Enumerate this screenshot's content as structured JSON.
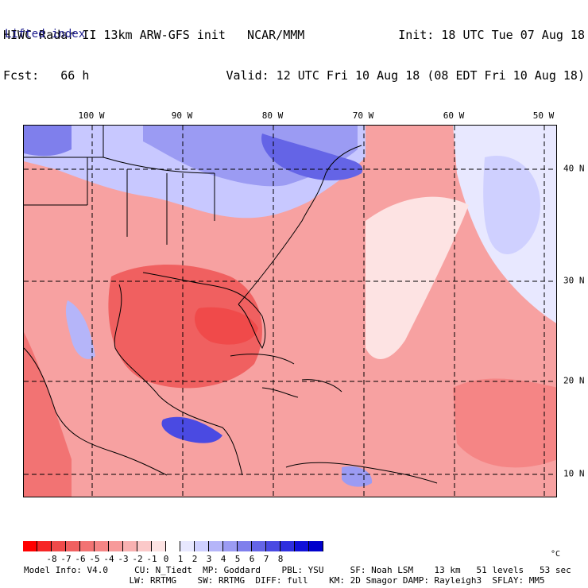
{
  "header": {
    "line1_left": "HIWC Radar II 13km ARW-GFS init   NCAR/MMM",
    "line2_left": "Fcst:   66 h",
    "line1_right": "Init: 18 UTC Tue 07 Aug 18",
    "line2_right": "Valid: 12 UTC Fri 10 Aug 18 (08 EDT Fri 10 Aug 18)",
    "field": "Lifted index"
  },
  "map": {
    "lon_labels": [
      "100 W",
      "90 W",
      "80 W",
      "70 W",
      "60 W",
      "50 W"
    ],
    "lat_labels": [
      "40 N",
      "30 N",
      "20 N",
      "10 N"
    ],
    "colors": {
      "land_outline": "#000000",
      "grid": "#000000",
      "unstable_strong": "#f04a4a",
      "unstable_mid": "#f78b8b",
      "unstable_weak": "#fbc9c9",
      "neutral": "#ffffff",
      "stable_weak": "#c8c8ff",
      "stable_mid": "#8080f0",
      "stable_strong": "#3b3be0"
    }
  },
  "colorbar": {
    "unit": "°C",
    "tick_labels": [
      "-8",
      "-7",
      "-6",
      "-5",
      "-4",
      "-3",
      "-2",
      "-1",
      "0",
      "1",
      "2",
      "3",
      "4",
      "5",
      "6",
      "7",
      "8"
    ],
    "colors": [
      "#ff0000",
      "#f62525",
      "#f04a4a",
      "#f06060",
      "#f27373",
      "#f58585",
      "#f79a9a",
      "#f9b1b1",
      "#fbc9c9",
      "#fde3e3",
      "#ffffff",
      "#e8e8ff",
      "#cfd0ff",
      "#b5b5f9",
      "#9b9bf3",
      "#7f7fec",
      "#6464e6",
      "#4a4ae2",
      "#2f2fde",
      "#1010d8",
      "#0000cc"
    ]
  },
  "footer": {
    "line1": "Model Info: V4.0     CU: N_Tiedt  MP: Goddard    PBL: YSU     SF: Noah LSM    13 km   51 levels   53 sec",
    "line2": "                    LW: RRTMG    SW: RRTMG  DIFF: full    KM: 2D Smagor DAMP: Rayleigh3  SFLAY: MM5"
  }
}
